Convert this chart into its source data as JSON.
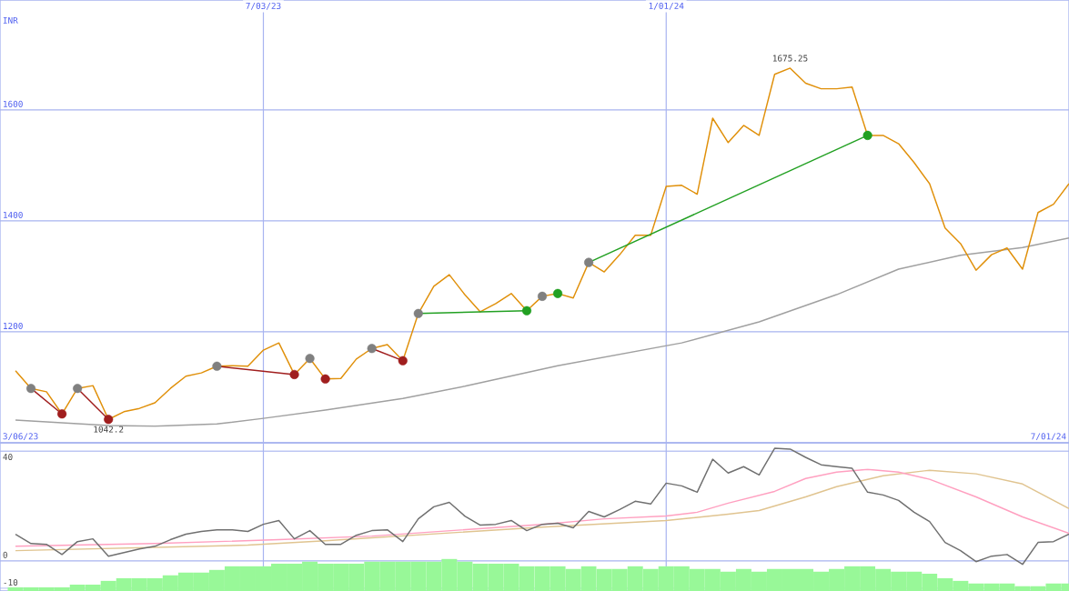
{
  "chart_data": [
    {
      "type": "line",
      "ylabel": "INR",
      "xlim": [
        "2023-03-06",
        "2024-07-01"
      ],
      "ylim": [
        1000,
        1798
      ],
      "yticks": [
        1200,
        1400,
        1600
      ],
      "xticks": [
        {
          "value": "2023-07-03",
          "label": "7/03/23"
        },
        {
          "value": "2024-01-01",
          "label": "1/01/24"
        }
      ],
      "grid": true,
      "marker": "none",
      "x": [
        "2023-03-13",
        "2023-03-20",
        "2023-03-27",
        "2023-04-03",
        "2023-04-10",
        "2023-04-17",
        "2023-04-24",
        "2023-05-01",
        "2023-05-08",
        "2023-05-15",
        "2023-05-22",
        "2023-05-29",
        "2023-06-05",
        "2023-06-12",
        "2023-06-19",
        "2023-06-26",
        "2023-07-03",
        "2023-07-10",
        "2023-07-17",
        "2023-07-24",
        "2023-07-31",
        "2023-08-07",
        "2023-08-14",
        "2023-08-21",
        "2023-08-28",
        "2023-09-04",
        "2023-09-11",
        "2023-09-18",
        "2023-09-25",
        "2023-10-02",
        "2023-10-09",
        "2023-10-16",
        "2023-10-23",
        "2023-10-30",
        "2023-11-06",
        "2023-11-13",
        "2023-11-20",
        "2023-11-27",
        "2023-12-04",
        "2023-12-11",
        "2023-12-18",
        "2023-12-25",
        "2024-01-01",
        "2024-01-08",
        "2024-01-15",
        "2024-01-22",
        "2024-01-29",
        "2024-02-05",
        "2024-02-12",
        "2024-02-19",
        "2024-02-26",
        "2024-03-04",
        "2024-03-11",
        "2024-03-18",
        "2024-03-25",
        "2024-04-01",
        "2024-04-08",
        "2024-04-15",
        "2024-04-22",
        "2024-04-29",
        "2024-05-06",
        "2024-05-13",
        "2024-05-20",
        "2024-05-27",
        "2024-06-03",
        "2024-06-10",
        "2024-06-17",
        "2024-06-24",
        "2024-07-01"
      ],
      "series": [
        {
          "type": "line",
          "color": "#a0a0a0",
          "x": [
            "2023-03-13",
            "2023-04-24",
            "2023-05-15",
            "2023-06-12",
            "2023-07-03",
            "2023-07-31",
            "2023-09-04",
            "2023-10-02",
            "2023-11-13",
            "2024-01-08",
            "2024-02-12",
            "2024-03-18",
            "2024-04-15",
            "2024-05-13",
            "2024-06-10",
            "2024-07-01"
          ],
          "values": [
            1041,
            1031,
            1030,
            1034,
            1044,
            1059,
            1080,
            1102,
            1139,
            1180,
            1218,
            1267,
            1313,
            1338,
            1352,
            1369
          ]
        },
        {
          "color": "#e0900a",
          "values": [
            1130,
            1098,
            1092,
            1052,
            1098,
            1103,
            1042.2,
            1056,
            1062,
            1072,
            1098,
            1120,
            1126,
            1138,
            1139,
            1138,
            1167,
            1180,
            1123,
            1152,
            1115,
            1116,
            1151,
            1170,
            1177,
            1148,
            1233,
            1282,
            1303,
            1267,
            1236,
            1251,
            1269,
            1238,
            1264,
            1269,
            1261,
            1325,
            1308,
            1339,
            1374,
            1374,
            1462,
            1464,
            1448,
            1585,
            1541,
            1572,
            1554,
            1664,
            1675.25,
            1648,
            1638,
            1638,
            1641,
            1554,
            1554,
            1539,
            1505,
            1467,
            1387,
            1359,
            1311,
            1339,
            1351,
            1313,
            1415,
            1430,
            1467
          ]
        },
        {
          "type": "line",
          "color": "#a01e1e",
          "x": [
            "2023-03-20",
            "2023-04-03"
          ],
          "values": [
            1098,
            1052
          ]
        },
        {
          "type": "line",
          "color": "#a01e1e",
          "x": [
            "2023-04-10",
            "2023-04-24"
          ],
          "values": [
            1098,
            1042.2
          ]
        },
        {
          "type": "line",
          "color": "#a01e1e",
          "x": [
            "2023-06-12",
            "2023-07-17"
          ],
          "values": [
            1138,
            1123
          ]
        },
        {
          "type": "line",
          "color": "#a01e1e",
          "x": [
            "2023-08-21",
            "2023-09-04"
          ],
          "values": [
            1170,
            1148
          ]
        },
        {
          "type": "line",
          "color": "#22a022",
          "x": [
            "2023-09-11",
            "2023-10-30"
          ],
          "values": [
            1233,
            1238
          ]
        },
        {
          "type": "line",
          "color": "#22a022",
          "x": [
            "2023-11-27",
            "2024-04-01"
          ],
          "values": [
            1325,
            1554
          ]
        },
        {
          "type": "scatter",
          "marker": "circle",
          "color": "#808080",
          "x": [
            "2023-03-20",
            "2023-04-10",
            "2023-06-12",
            "2023-07-24",
            "2023-08-21",
            "2023-09-11",
            "2023-11-06",
            "2023-11-27"
          ],
          "values": [
            1098,
            1098,
            1138,
            1152,
            1170,
            1233,
            1264,
            1325
          ]
        },
        {
          "type": "scatter",
          "marker": "circle",
          "color": "#a01e1e",
          "x": [
            "2023-04-03",
            "2023-04-24",
            "2023-07-17",
            "2023-07-31",
            "2023-09-04"
          ],
          "values": [
            1052,
            1042.2,
            1123,
            1115,
            1148
          ]
        },
        {
          "type": "scatter",
          "marker": "circle",
          "color": "#22a022",
          "x": [
            "2023-10-30",
            "2023-11-13",
            "2024-04-01"
          ],
          "values": [
            1238,
            1269,
            1554
          ]
        }
      ],
      "annotations": [
        {
          "text": "1675.25",
          "x": "2024-02-26",
          "y": 1675.25
        },
        {
          "text": "1042.2",
          "x": "2023-04-24",
          "y": 1042.2
        },
        "3/06/23",
        "7/01/24"
      ]
    },
    {
      "type": "line",
      "xlim": [
        "2023-03-06",
        "2024-07-01"
      ],
      "ylim": [
        -11,
        43
      ],
      "yticks": [
        -10,
        0,
        40
      ],
      "xticks": [
        {
          "value": "2023-07-03",
          "label": null
        },
        {
          "value": "2024-01-01",
          "label": null
        }
      ],
      "grid": true,
      "tick_labels": "y",
      "x": [
        "2023-03-13",
        "2023-03-20",
        "2023-03-27",
        "2023-04-03",
        "2023-04-10",
        "2023-04-17",
        "2023-04-24",
        "2023-05-01",
        "2023-05-08",
        "2023-05-15",
        "2023-05-22",
        "2023-05-29",
        "2023-06-05",
        "2023-06-12",
        "2023-06-19",
        "2023-06-26",
        "2023-07-03",
        "2023-07-10",
        "2023-07-17",
        "2023-07-24",
        "2023-07-31",
        "2023-08-07",
        "2023-08-14",
        "2023-08-21",
        "2023-08-28",
        "2023-09-04",
        "2023-09-11",
        "2023-09-18",
        "2023-09-25",
        "2023-10-02",
        "2023-10-09",
        "2023-10-16",
        "2023-10-23",
        "2023-10-30",
        "2023-11-06",
        "2023-11-13",
        "2023-11-20",
        "2023-11-27",
        "2023-12-04",
        "2023-12-11",
        "2023-12-18",
        "2023-12-25",
        "2024-01-01",
        "2024-01-08",
        "2024-01-15",
        "2024-01-22",
        "2024-01-29",
        "2024-02-05",
        "2024-02-12",
        "2024-02-19",
        "2024-02-26",
        "2024-03-04",
        "2024-03-11",
        "2024-03-18",
        "2024-03-25",
        "2024-04-01",
        "2024-04-08",
        "2024-04-15",
        "2024-04-22",
        "2024-04-29",
        "2024-05-06",
        "2024-05-13",
        "2024-05-20",
        "2024-05-27",
        "2024-06-03",
        "2024-06-10",
        "2024-06-17",
        "2024-06-24",
        "2024-07-01"
      ],
      "series": [
        {
          "type": "bar",
          "color": "#98f898",
          "base": [
            -11,
            -11,
            -11,
            -11,
            -11,
            -11,
            -11,
            -11,
            -11,
            -11,
            -11,
            -11,
            -11,
            -11,
            -11,
            -11,
            -11,
            -11,
            -11,
            -11,
            -11,
            -11,
            -11,
            -11,
            -11,
            -11,
            -11,
            -11,
            -11,
            -11,
            -11,
            -11,
            -11,
            -11,
            -11,
            -11,
            -11,
            -11,
            -11,
            -11,
            -11,
            -11,
            -11,
            -11,
            -11,
            -11,
            -11,
            -11,
            -11,
            -11,
            -11,
            -11,
            -11,
            -11,
            -11,
            -11,
            -11,
            -11,
            -11,
            -11,
            -11,
            -11,
            -11,
            -11,
            -11,
            -11,
            -11,
            -11,
            -11
          ],
          "values": [
            1.3,
            1.3,
            1.3,
            1.3,
            2.3,
            2.3,
            3.7,
            4.7,
            4.7,
            4.7,
            5.7,
            6.7,
            6.7,
            7.7,
            9,
            9,
            9,
            10,
            10,
            10.7,
            10,
            10,
            10,
            10.7,
            10.7,
            10.7,
            10.7,
            10.7,
            11.7,
            10.7,
            10,
            10,
            10,
            9,
            9,
            9,
            8,
            9,
            8,
            8,
            9,
            8,
            9,
            9,
            8,
            8,
            7,
            8,
            7,
            8,
            8,
            8,
            7,
            8,
            9,
            9,
            8,
            7,
            7,
            6.3,
            4.7,
            3.7,
            2.7,
            2.7,
            2.7,
            1.7,
            1.7,
            2.7,
            2.7
          ]
        },
        {
          "type": "line",
          "color": "#e0c490",
          "x": [
            "2023-03-13",
            "2023-06-26",
            "2023-07-31",
            "2023-11-06",
            "2024-01-01",
            "2024-01-29",
            "2024-02-12",
            "2024-03-04",
            "2024-03-18",
            "2024-04-08",
            "2024-04-29",
            "2024-05-20",
            "2024-06-10",
            "2024-07-01"
          ],
          "values": [
            3.7,
            5.7,
            7.3,
            12.3,
            14.7,
            17,
            18.3,
            23.3,
            27,
            31,
            33,
            31.7,
            28,
            19
          ]
        },
        {
          "type": "line",
          "color": "#ffa0c0",
          "x": [
            "2023-03-13",
            "2023-05-15",
            "2023-07-10",
            "2023-08-21",
            "2023-11-06",
            "2023-12-04",
            "2024-01-01",
            "2024-01-15",
            "2024-01-29",
            "2024-02-19",
            "2024-03-04",
            "2024-03-18",
            "2024-04-01",
            "2024-04-15",
            "2024-04-29",
            "2024-05-20",
            "2024-06-10",
            "2024-07-01"
          ],
          "values": [
            5.3,
            6.3,
            7.7,
            9,
            13.3,
            15.3,
            16.3,
            17.7,
            21,
            25.3,
            30,
            32.3,
            33.3,
            32.3,
            29.7,
            23.3,
            16,
            10
          ]
        },
        {
          "color": "#707070",
          "values": [
            9.7,
            6.3,
            6,
            2.3,
            7,
            8,
            1.7,
            3,
            4.3,
            5.3,
            7.7,
            9.7,
            10.7,
            11.3,
            11.3,
            10.7,
            13.3,
            14.7,
            8,
            11,
            6,
            6,
            9.3,
            11,
            11.3,
            7,
            15.3,
            19.7,
            21.3,
            16.3,
            13,
            13.3,
            14.7,
            11,
            13.3,
            13.7,
            12,
            18,
            16,
            18.7,
            21.7,
            20.7,
            28.3,
            27.3,
            25,
            37,
            32,
            34.3,
            31.3,
            41,
            40.7,
            37.7,
            35,
            34.3,
            33.7,
            25,
            24,
            22,
            17.7,
            14.3,
            6.7,
            3.7,
            -0.3,
            1.7,
            2.3,
            -1.3,
            6.7,
            7,
            9.7
          ]
        }
      ]
    }
  ]
}
